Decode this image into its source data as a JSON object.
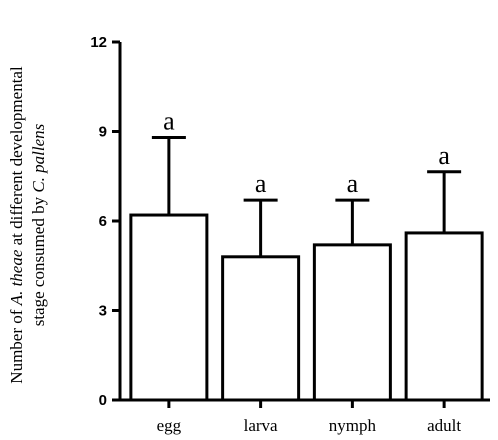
{
  "chart_data": {
    "type": "bar",
    "title": "",
    "xlabel": "",
    "ylabel": {
      "line1": [
        {
          "text": "Number of ",
          "italic": false
        },
        {
          "text": "A. theae",
          "italic": true
        },
        {
          "text": " at different developmental",
          "italic": false
        }
      ],
      "line2": [
        {
          "text": "stage consumed by ",
          "italic": false
        },
        {
          "text": "C. pallens",
          "italic": true
        }
      ]
    },
    "ylim": [
      0,
      12
    ],
    "yticks": [
      0,
      3,
      6,
      9,
      12
    ],
    "categories": [
      "egg",
      "larva",
      "nymph",
      "adult"
    ],
    "values": [
      6.2,
      4.8,
      5.2,
      5.6
    ],
    "error_upper": [
      8.8,
      6.7,
      6.7,
      7.65
    ],
    "significance": [
      "a",
      "a",
      "a",
      "a"
    ],
    "grid": false,
    "legend": "none",
    "bar_fill": "#ffffff",
    "stroke_color": "#000000"
  }
}
